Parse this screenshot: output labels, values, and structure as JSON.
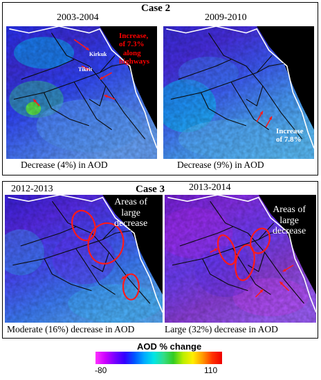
{
  "case2": {
    "label": "Case 2",
    "left": {
      "period": "2003-2004",
      "caption": "Decrease (4%) in AOD",
      "annotation_lines": [
        "Increase,",
        "of 7.3%",
        "along",
        "highways"
      ],
      "city_labels": [
        "Kirkuk",
        "Tikrit"
      ]
    },
    "right": {
      "period": "2009-2010",
      "caption": "Decrease (9%) in AOD",
      "annotation_lines": [
        "Increase",
        "of 7.8%"
      ]
    }
  },
  "case3": {
    "label": "Case 3",
    "left": {
      "period": "2012-2013",
      "caption": "Moderate (16%) decrease in AOD",
      "annotation_lines": [
        "Areas of",
        "large",
        "decrease"
      ]
    },
    "right": {
      "period": "2013-2014",
      "caption": "Large (32%) decrease in AOD",
      "annotation_lines": [
        "Areas of",
        "large",
        "decrease"
      ]
    }
  },
  "colorbar": {
    "title": "AOD % change",
    "min_label": "-80",
    "max_label": "110",
    "colors": [
      "#ff33ff",
      "#cc00ff",
      "#7700ff",
      "#3300ff",
      "#0055ff",
      "#00aaff",
      "#00e5e5",
      "#33dd88",
      "#33cc22",
      "#bbee00",
      "#ffee00",
      "#ff9900",
      "#ff3300",
      "#ee0000"
    ]
  },
  "colors": {
    "annotation_red": "#ff0000",
    "annotation_white": "#ffffff",
    "mask": "#000000"
  }
}
